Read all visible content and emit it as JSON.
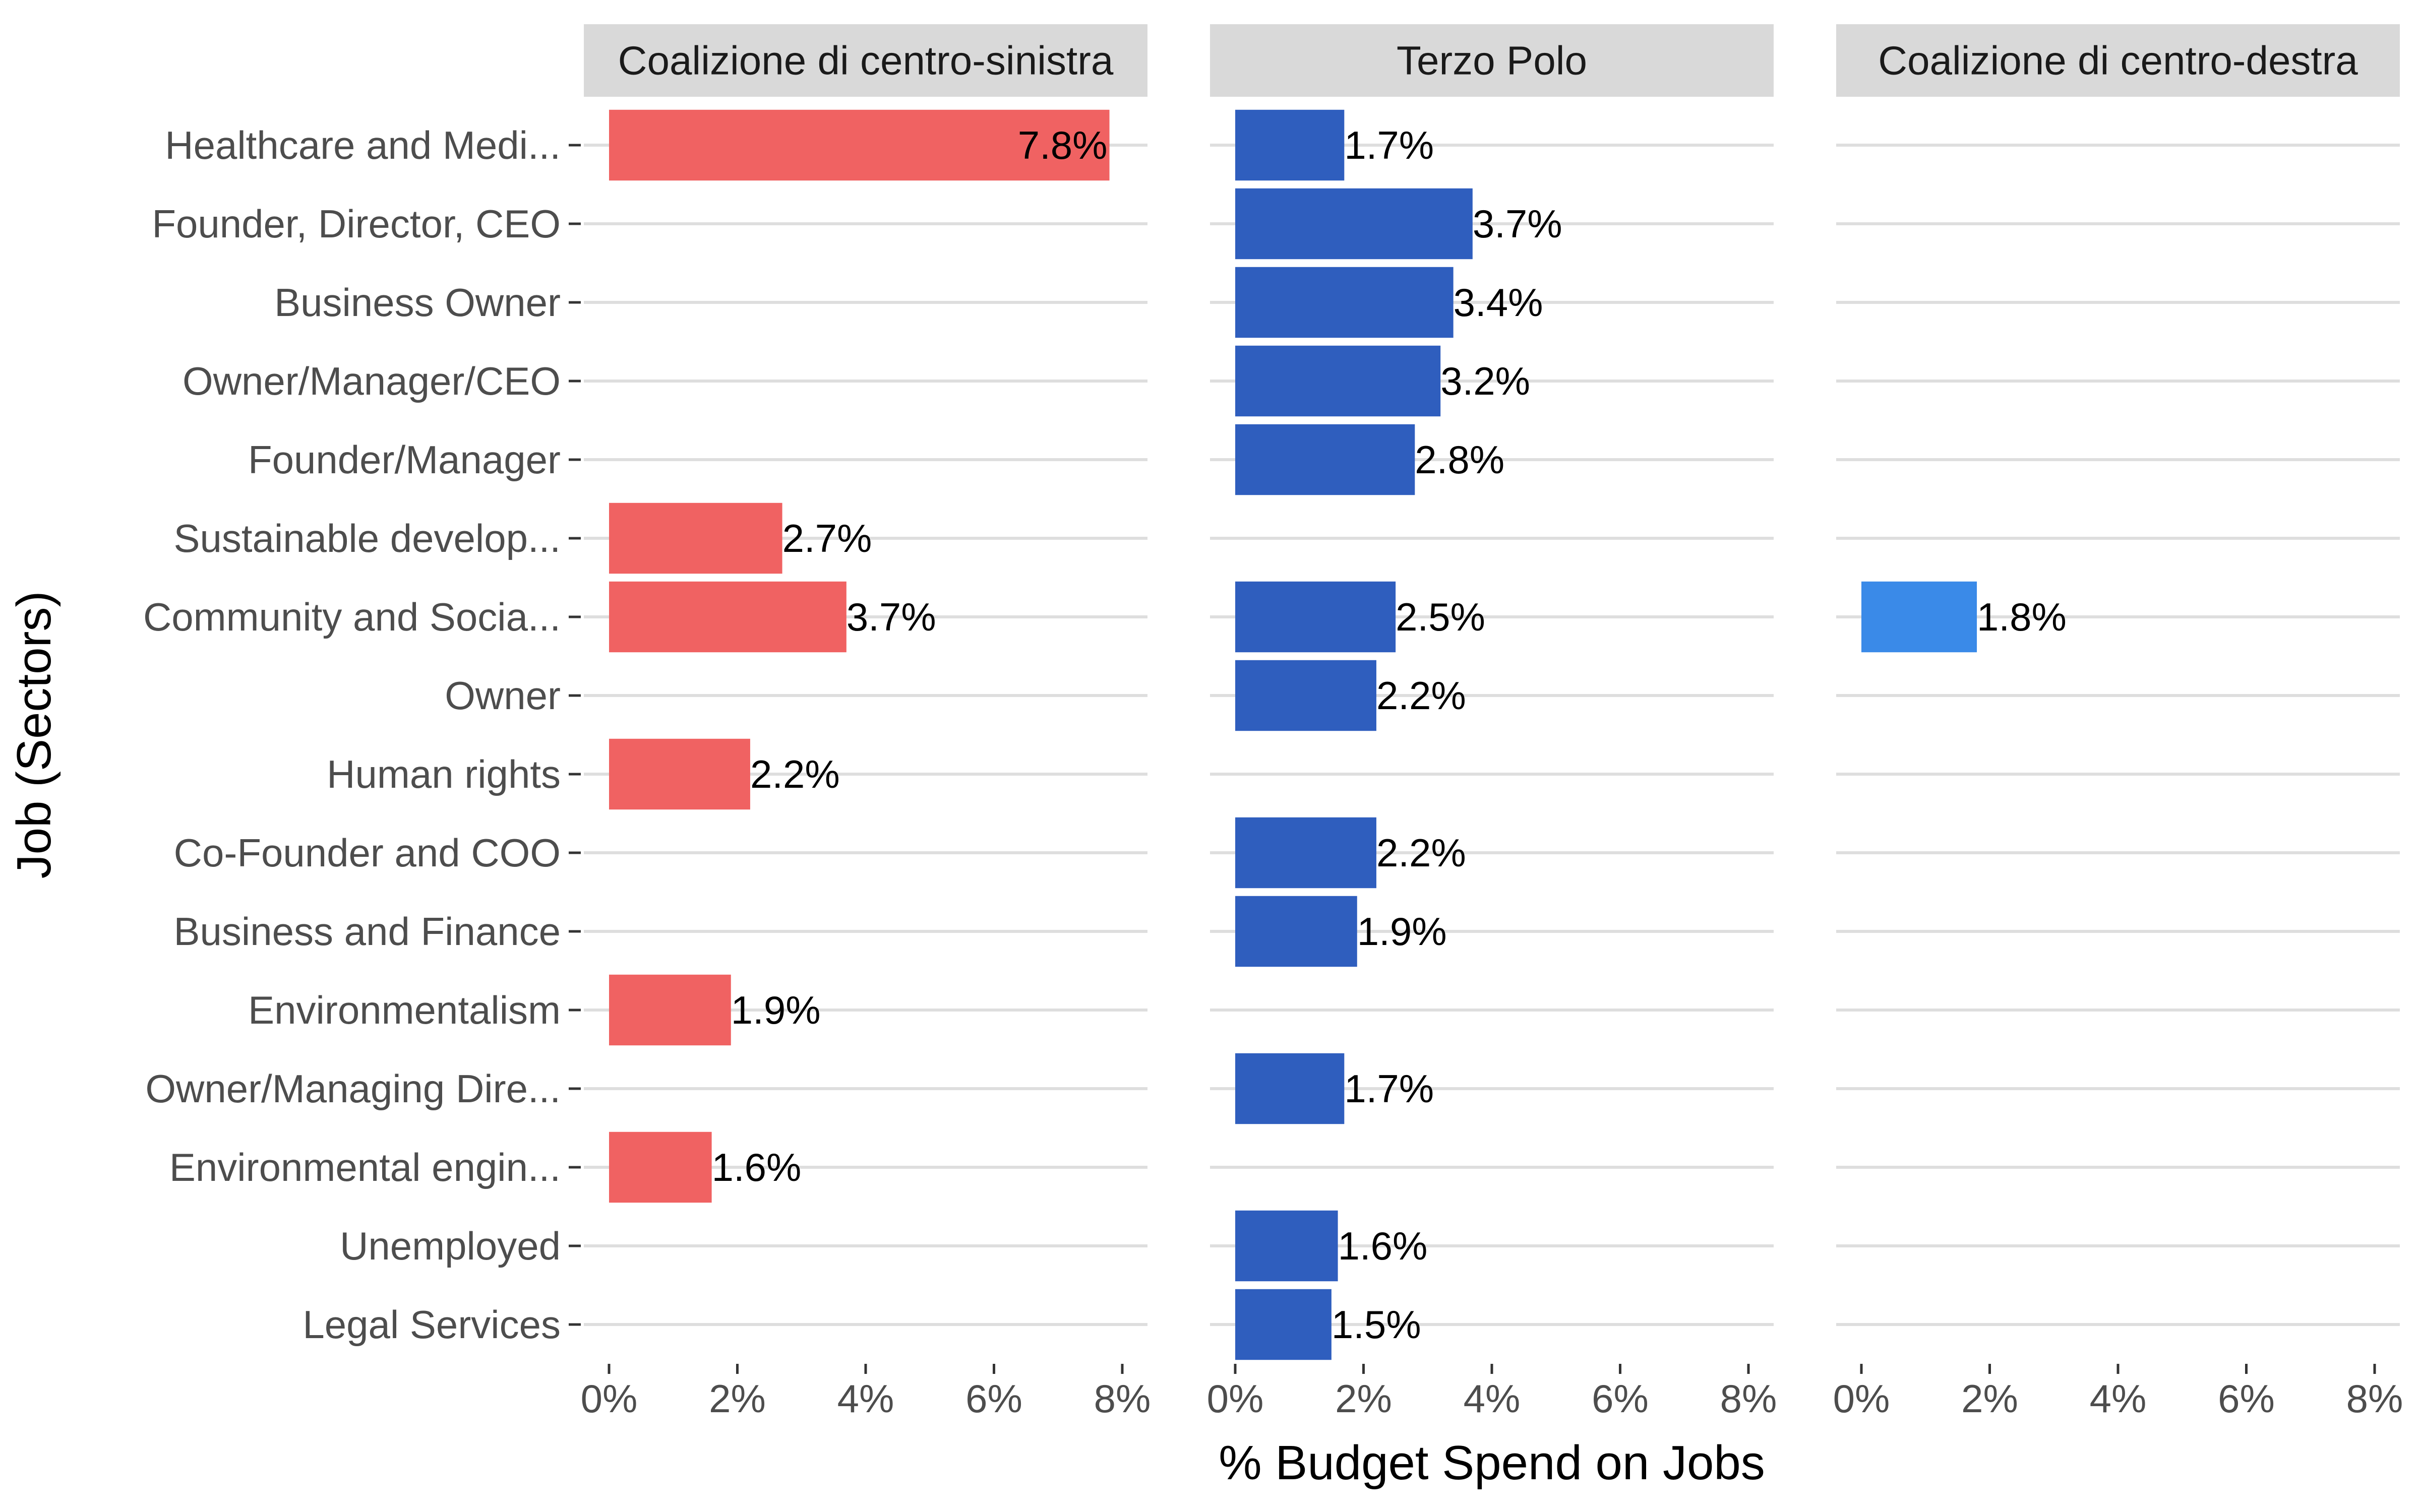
{
  "chart_data": {
    "type": "bar",
    "orientation": "horizontal",
    "xlabel": "% Budget Spend on Jobs",
    "ylabel": "Job (Sectors)",
    "xlim": [
      0,
      8
    ],
    "x_ticks": [
      "0%",
      "2%",
      "4%",
      "6%",
      "8%"
    ],
    "grid": true,
    "categories": [
      "Healthcare and Medi...",
      "Founder, Director, CEO",
      "Business Owner",
      "Owner/Manager/CEO",
      "Founder/Manager",
      "Sustainable develop...",
      "Community and Socia...",
      "Owner",
      "Human rights",
      "Co-Founder and COO",
      "Business and Finance",
      "Environmentalism",
      "Owner/Managing Dire...",
      "Environmental engin...",
      "Unemployed",
      "Legal Services"
    ],
    "panels": [
      {
        "name": "Coalizione di centro-sinistra",
        "color": "#f06262",
        "values": [
          7.8,
          null,
          null,
          null,
          null,
          2.7,
          3.7,
          null,
          2.2,
          null,
          null,
          1.9,
          null,
          1.6,
          null,
          null
        ],
        "labels": [
          "7.8%",
          null,
          null,
          null,
          null,
          "2.7%",
          "3.7%",
          null,
          "2.2%",
          null,
          null,
          "1.9%",
          null,
          "1.6%",
          null,
          null
        ]
      },
      {
        "name": "Terzo Polo",
        "color": "#2f5ebe",
        "values": [
          1.7,
          3.7,
          3.4,
          3.2,
          2.8,
          null,
          2.5,
          2.2,
          null,
          2.2,
          1.9,
          null,
          1.7,
          null,
          1.6,
          1.5
        ],
        "labels": [
          "1.7%",
          "3.7%",
          "3.4%",
          "3.2%",
          "2.8%",
          null,
          "2.5%",
          "2.2%",
          null,
          "2.2%",
          "1.9%",
          null,
          "1.7%",
          null,
          "1.6%",
          "1.5%"
        ]
      },
      {
        "name": "Coalizione di centro-destra",
        "color": "#3a8ae8",
        "values": [
          null,
          null,
          null,
          null,
          null,
          null,
          1.8,
          null,
          null,
          null,
          null,
          null,
          null,
          null,
          null,
          null
        ],
        "labels": [
          null,
          null,
          null,
          null,
          null,
          null,
          "1.8%",
          null,
          null,
          null,
          null,
          null,
          null,
          null,
          null,
          null
        ]
      }
    ]
  }
}
